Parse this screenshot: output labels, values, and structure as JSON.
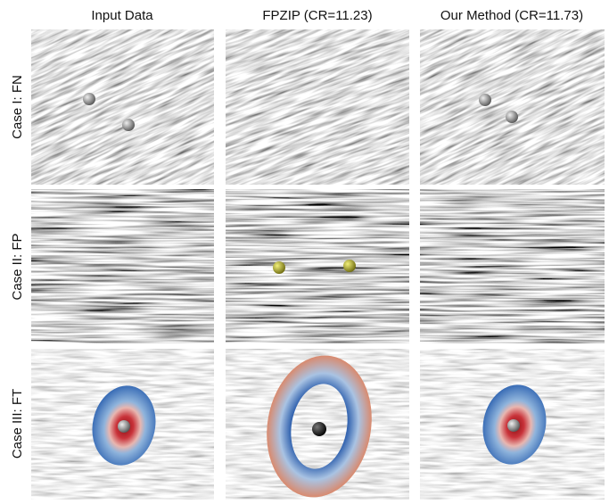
{
  "columns": [
    "Input Data",
    "FPZIP (CR=11.23)",
    "Our Method (CR=11.73)"
  ],
  "rows": [
    "Case I: FN",
    "Case II: FP",
    "Case III: FT"
  ]
}
